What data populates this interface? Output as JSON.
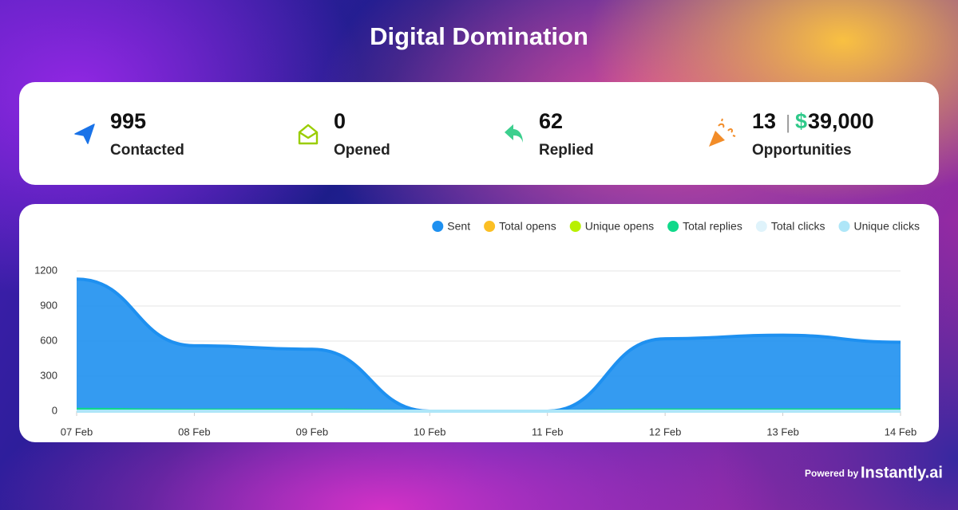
{
  "header": {
    "title": "Digital Domination"
  },
  "stats": [
    {
      "value": "995",
      "label": "Contacted"
    },
    {
      "value": "0",
      "label": "Opened"
    },
    {
      "value": "62",
      "label": "Replied"
    },
    {
      "value": "13",
      "currency": "$",
      "amount": "39,000",
      "label": "Opportunities"
    }
  ],
  "chart_data": {
    "type": "area",
    "categories": [
      "07 Feb",
      "08 Feb",
      "09 Feb",
      "10 Feb",
      "11 Feb",
      "12 Feb",
      "13 Feb",
      "14 Feb"
    ],
    "series": [
      {
        "name": "Sent",
        "color": "#1e90f0",
        "values": [
          1130,
          560,
          530,
          0,
          0,
          620,
          650,
          590
        ]
      },
      {
        "name": "Total opens",
        "color": "#fbbf24",
        "values": [
          0,
          0,
          0,
          0,
          0,
          0,
          0,
          0
        ]
      },
      {
        "name": "Unique opens",
        "color": "#b8f000",
        "values": [
          0,
          0,
          0,
          0,
          0,
          0,
          0,
          0
        ]
      },
      {
        "name": "Total replies",
        "color": "#10d98a",
        "values": [
          15,
          8,
          10,
          0,
          0,
          9,
          10,
          10
        ]
      },
      {
        "name": "Total clicks",
        "color": "#dff3fb",
        "values": [
          0,
          0,
          0,
          0,
          0,
          0,
          0,
          0
        ]
      },
      {
        "name": "Unique clicks",
        "color": "#aee6f8",
        "values": [
          0,
          0,
          0,
          0,
          0,
          0,
          0,
          0
        ]
      }
    ],
    "ylim": [
      0,
      1200
    ],
    "yticks": [
      0,
      300,
      600,
      900,
      1200
    ],
    "grid": true,
    "legend": "top-right"
  },
  "footer": {
    "prefix": "Powered by",
    "brand": "Instantly.ai"
  }
}
